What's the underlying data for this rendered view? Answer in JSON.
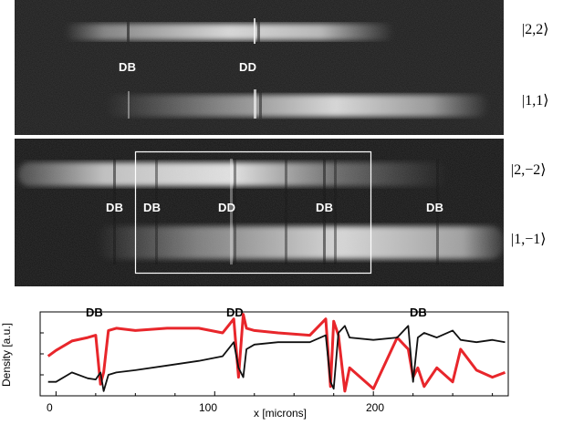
{
  "top_panel": {
    "labels": [
      "DB",
      "DD"
    ],
    "states": [
      "|2,2⟩",
      "|1,1⟩"
    ]
  },
  "bottom_panel": {
    "labels": [
      "DB",
      "DB",
      "DD",
      "DB",
      "DB"
    ],
    "states": [
      "|2,−2⟩",
      "|1,−1⟩"
    ]
  },
  "plot": {
    "labels": [
      "DB",
      "DD",
      "DB"
    ],
    "ylabel": "Density [a.u.]",
    "xlabel": "x [microns]",
    "xticks": [
      "0",
      "100",
      "200"
    ],
    "colors": {
      "red": "#e8262b",
      "black": "#111111"
    }
  },
  "chart_data": {
    "type": "line",
    "xlabel": "x [microns]",
    "ylabel": "Density [a.u.]",
    "xlim": [
      -10,
      285
    ],
    "x": [
      -5,
      0,
      10,
      20,
      25,
      28,
      30,
      33,
      38,
      50,
      70,
      90,
      105,
      112,
      115,
      118,
      120,
      125,
      140,
      160,
      170,
      173,
      175,
      178,
      182,
      185,
      200,
      215,
      222,
      225,
      228,
      232,
      240,
      250,
      255,
      265,
      275,
      283
    ],
    "series": [
      {
        "values": [
          1.7,
          1.95,
          2.35,
          2.5,
          2.6,
          0.5,
          1.0,
          2.8,
          2.9,
          2.8,
          2.9,
          2.9,
          2.7,
          3.3,
          0.8,
          3.5,
          2.9,
          2.8,
          2.7,
          2.6,
          3.3,
          0.4,
          3.2,
          2.6,
          0.2,
          1.2,
          0.3,
          2.5,
          2.0,
          0.8,
          1.2,
          0.4,
          1.2,
          0.6,
          2.0,
          1.1,
          0.8,
          1.0
        ]
      },
      {
        "values": [
          0.6,
          0.6,
          1.0,
          0.75,
          0.7,
          1.0,
          0.2,
          0.9,
          1.0,
          1.1,
          1.3,
          1.5,
          1.7,
          2.3,
          1.2,
          0.8,
          2.0,
          2.2,
          2.3,
          2.3,
          2.6,
          0.6,
          0.3,
          2.7,
          3.0,
          2.5,
          2.4,
          2.5,
          3.0,
          0.6,
          2.5,
          2.7,
          2.5,
          2.8,
          2.4,
          2.3,
          2.4,
          2.3
        ]
      }
    ]
  }
}
